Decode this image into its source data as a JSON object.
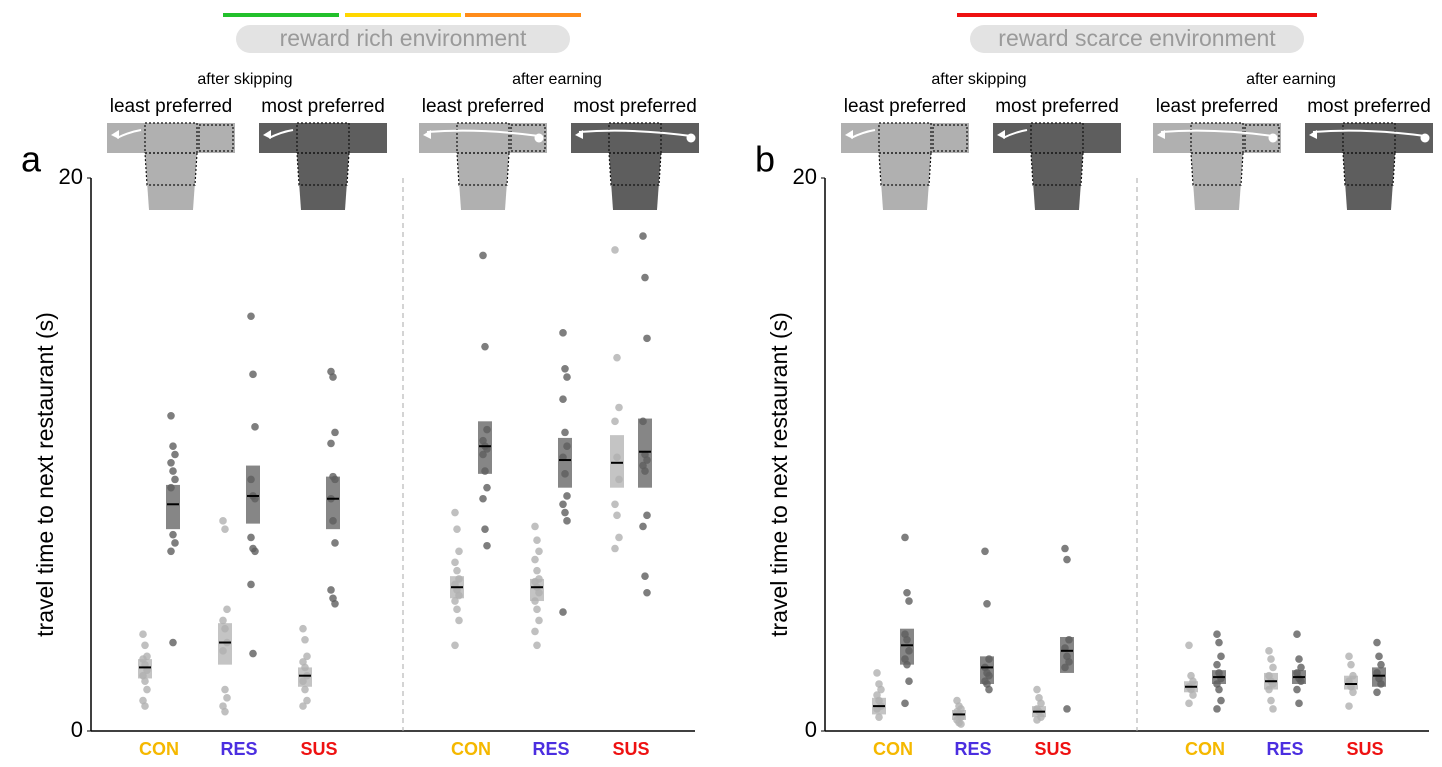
{
  "chart_data": [
    {
      "type": "strip",
      "panel": "a",
      "environment": "reward rich environment",
      "environment_colors": [
        "#22c02b",
        "#ffd700",
        "#ff8c1a"
      ],
      "ylabel": "travel time to next restaurant (s)",
      "ylim": [
        0,
        20
      ],
      "yticks": [
        0,
        20
      ],
      "categories": [
        "CON",
        "RES",
        "SUS"
      ],
      "category_colors": [
        "#f5b800",
        "#4b2ee0",
        "#ee1111"
      ],
      "conditions": [
        {
          "name": "after skipping",
          "series": [
            {
              "name": "least preferred",
              "color": "#b0b0b0",
              "values": [
                [
                  3.5,
                  3.1,
                  2.7,
                  2.6,
                  2.4,
                  2.2,
                  2.0,
                  1.8,
                  1.5,
                  1.1,
                  0.9
                ],
                [
                  7.6,
                  7.3,
                  4.4,
                  4.0,
                  3.7,
                  3.2,
                  2.9,
                  1.5,
                  1.2,
                  0.9,
                  0.7
                ],
                [
                  3.7,
                  3.3,
                  2.7,
                  2.5,
                  2.3,
                  2.0,
                  1.8,
                  1.5,
                  1.1,
                  0.9
                ]
              ],
              "means": [
                2.3,
                3.2,
                2.0
              ],
              "ci": [
                [
                  1.9,
                  2.6
                ],
                [
                  2.4,
                  3.9
                ],
                [
                  1.6,
                  2.3
                ]
              ]
            },
            {
              "name": "most preferred",
              "color": "#5e5e5e",
              "values": [
                [
                  11.4,
                  10.3,
                  10.0,
                  9.7,
                  9.4,
                  9.1,
                  8.8,
                  7.1,
                  6.8,
                  6.5,
                  3.2
                ],
                [
                  15.0,
                  12.9,
                  11.0,
                  9.1,
                  8.5,
                  8.4,
                  7.0,
                  6.6,
                  6.5,
                  5.3,
                  2.8
                ],
                [
                  13.0,
                  12.8,
                  10.8,
                  10.4,
                  9.2,
                  9.1,
                  8.4,
                  7.6,
                  6.8,
                  5.1,
                  4.8,
                  4.6
                ]
              ],
              "means": [
                8.2,
                8.5,
                8.4
              ],
              "ci": [
                [
                  7.3,
                  8.9
                ],
                [
                  7.5,
                  9.6
                ],
                [
                  7.3,
                  9.2
                ]
              ]
            }
          ]
        },
        {
          "name": "after earning",
          "series": [
            {
              "name": "least preferred",
              "color": "#b0b0b0",
              "values": [
                [
                  7.9,
                  7.3,
                  6.5,
                  6.1,
                  5.8,
                  5.5,
                  5.3,
                  5.1,
                  4.9,
                  4.7,
                  4.4,
                  4.0,
                  3.1
                ],
                [
                  7.4,
                  6.9,
                  6.5,
                  6.2,
                  5.8,
                  5.5,
                  5.4,
                  5.2,
                  5.0,
                  4.7,
                  4.4,
                  4.0,
                  3.6,
                  3.1
                ],
                [
                  17.4,
                  13.5,
                  11.7,
                  11.2,
                  9.9,
                  9.1,
                  8.2,
                  7.8,
                  7.0,
                  6.6
                ]
              ],
              "means": [
                5.2,
                5.2,
                9.7
              ],
              "ci": [
                [
                  4.8,
                  5.6
                ],
                [
                  4.7,
                  5.5
                ],
                [
                  8.8,
                  10.7
                ]
              ]
            },
            {
              "name": "most preferred",
              "color": "#5e5e5e",
              "values": [
                [
                  17.2,
                  13.9,
                  10.9,
                  10.5,
                  10.3,
                  10.2,
                  10.0,
                  9.4,
                  8.8,
                  8.4,
                  7.3,
                  6.7
                ],
                [
                  14.4,
                  13.1,
                  12.8,
                  12.0,
                  10.8,
                  10.3,
                  9.9,
                  9.3,
                  8.5,
                  8.2,
                  7.9,
                  7.6,
                  4.3
                ],
                [
                  17.9,
                  16.4,
                  14.2,
                  11.2,
                  10.0,
                  9.8,
                  9.6,
                  9.4,
                  7.8,
                  7.4,
                  5.6,
                  5.0
                ]
              ],
              "means": [
                10.3,
                9.8,
                10.1
              ],
              "ci": [
                [
                  9.3,
                  11.2
                ],
                [
                  8.8,
                  10.6
                ],
                [
                  8.8,
                  11.3
                ]
              ]
            }
          ]
        }
      ]
    },
    {
      "type": "strip",
      "panel": "b",
      "environment": "reward scarce environment",
      "environment_colors": [
        "#ee1111"
      ],
      "ylabel": "travel time to next restaurant (s)",
      "ylim": [
        0,
        20
      ],
      "yticks": [
        0,
        20
      ],
      "categories": [
        "CON",
        "RES",
        "SUS"
      ],
      "category_colors": [
        "#f5b800",
        "#4b2ee0",
        "#ee1111"
      ],
      "conditions": [
        {
          "name": "after skipping",
          "series": [
            {
              "name": "least preferred",
              "color": "#b0b0b0",
              "values": [
                [
                  2.1,
                  1.7,
                  1.5,
                  1.3,
                  1.1,
                  0.9,
                  0.8,
                  0.5
                ],
                [
                  1.1,
                  0.9,
                  0.8,
                  0.7,
                  0.6,
                  0.5,
                  0.4,
                  0.3,
                  0.25
                ],
                [
                  1.5,
                  1.2,
                  1.0,
                  0.8,
                  0.7,
                  0.5,
                  0.4
                ]
              ],
              "means": [
                0.9,
                0.6,
                0.7
              ],
              "ci": [
                [
                  0.6,
                  1.2
                ],
                [
                  0.4,
                  0.76
                ],
                [
                  0.5,
                  0.9
                ]
              ]
            },
            {
              "name": "most preferred",
              "color": "#5e5e5e",
              "values": [
                [
                  7.0,
                  5.0,
                  4.7,
                  3.5,
                  3.3,
                  2.9,
                  2.6,
                  2.4,
                  1.8,
                  1.0
                ],
                [
                  6.5,
                  4.6,
                  2.6,
                  2.3,
                  2.1,
                  2.0,
                  1.8,
                  1.7,
                  1.5
                ],
                [
                  6.6,
                  6.2,
                  3.3,
                  3.0,
                  2.7,
                  2.5,
                  2.3,
                  0.8
                ]
              ],
              "means": [
                3.1,
                2.3,
                2.9
              ],
              "ci": [
                [
                  2.4,
                  3.7
                ],
                [
                  1.7,
                  2.7
                ],
                [
                  2.1,
                  3.4
                ]
              ]
            }
          ]
        },
        {
          "name": "after earning",
          "series": [
            {
              "name": "least preferred",
              "color": "#b0b0b0",
              "values": [
                [
                  3.1,
                  2.0,
                  1.8,
                  1.6,
                  1.5,
                  1.3,
                  1.0
                ],
                [
                  2.9,
                  2.6,
                  2.3,
                  2.0,
                  1.8,
                  1.7,
                  1.5,
                  1.1,
                  0.8
                ],
                [
                  2.7,
                  2.4,
                  2.0,
                  1.8,
                  1.6,
                  1.4,
                  0.9
                ]
              ],
              "means": [
                1.6,
                1.8,
                1.7
              ],
              "ci": [
                [
                  1.4,
                  1.8
                ],
                [
                  1.5,
                  2.1
                ],
                [
                  1.5,
                  2.0
                ]
              ]
            },
            {
              "name": "most preferred",
              "color": "#5e5e5e",
              "values": [
                [
                  3.5,
                  3.2,
                  2.7,
                  2.4,
                  2.1,
                  1.9,
                  1.7,
                  1.5,
                  1.1,
                  0.8
                ],
                [
                  3.5,
                  2.6,
                  2.3,
                  2.1,
                  1.9,
                  1.8,
                  1.5,
                  1.0
                ],
                [
                  3.2,
                  2.7,
                  2.4,
                  2.1,
                  1.9,
                  1.7,
                  1.4
                ]
              ],
              "means": [
                1.95,
                1.95,
                2.0
              ],
              "ci": [
                [
                  1.7,
                  2.2
                ],
                [
                  1.7,
                  2.2
                ],
                [
                  1.6,
                  2.3
                ]
              ]
            }
          ]
        }
      ]
    }
  ]
}
